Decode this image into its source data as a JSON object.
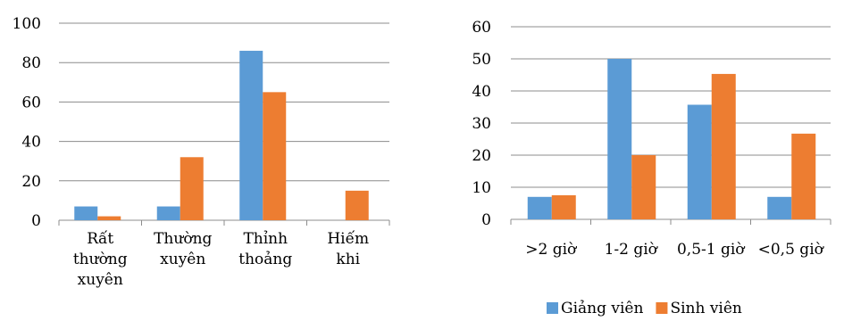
{
  "chart_data": [
    {
      "type": "bar",
      "categories": [
        "Rất thường xuyên",
        "Thường xuyên",
        "Thỉnh thoảng",
        "Hiếm khi"
      ],
      "category_lines": [
        [
          "Rất",
          "thường",
          "xuyên"
        ],
        [
          "Thường",
          "xuyên"
        ],
        [
          "Thỉnh",
          "thoảng"
        ],
        [
          "Hiếm",
          "khi"
        ]
      ],
      "series": [
        {
          "name": "Giảng viên",
          "values": [
            7,
            7,
            86,
            0
          ]
        },
        {
          "name": "Sinh viên",
          "values": [
            2,
            32,
            65,
            15
          ]
        }
      ],
      "ylim": [
        0,
        100
      ],
      "yticks": [
        "0",
        "20",
        "40",
        "60",
        "80",
        "100"
      ],
      "grid": true,
      "legend": "none"
    },
    {
      "type": "bar",
      "categories": [
        ">2 giờ",
        "1-2 giờ",
        "0,5-1 giờ",
        "<0,5 giờ"
      ],
      "category_lines": [
        [
          ">2 giờ"
        ],
        [
          "1-2 giờ"
        ],
        [
          "0,5-1 giờ"
        ],
        [
          "<0,5 giờ"
        ]
      ],
      "series": [
        {
          "name": "Giảng viên",
          "values": [
            7,
            50,
            35.7,
            7
          ]
        },
        {
          "name": "Sinh viên",
          "values": [
            7.5,
            20,
            45.3,
            26.7
          ]
        }
      ],
      "ylim": [
        0,
        60
      ],
      "yticks": [
        "0",
        "10",
        "20",
        "30",
        "40",
        "50",
        "60"
      ],
      "grid": true,
      "legend": "bottom"
    }
  ],
  "colors": {
    "Giảng viên": "#5B9BD5",
    "Sinh viên": "#ED7D31",
    "grid": "#8C8C8C"
  }
}
